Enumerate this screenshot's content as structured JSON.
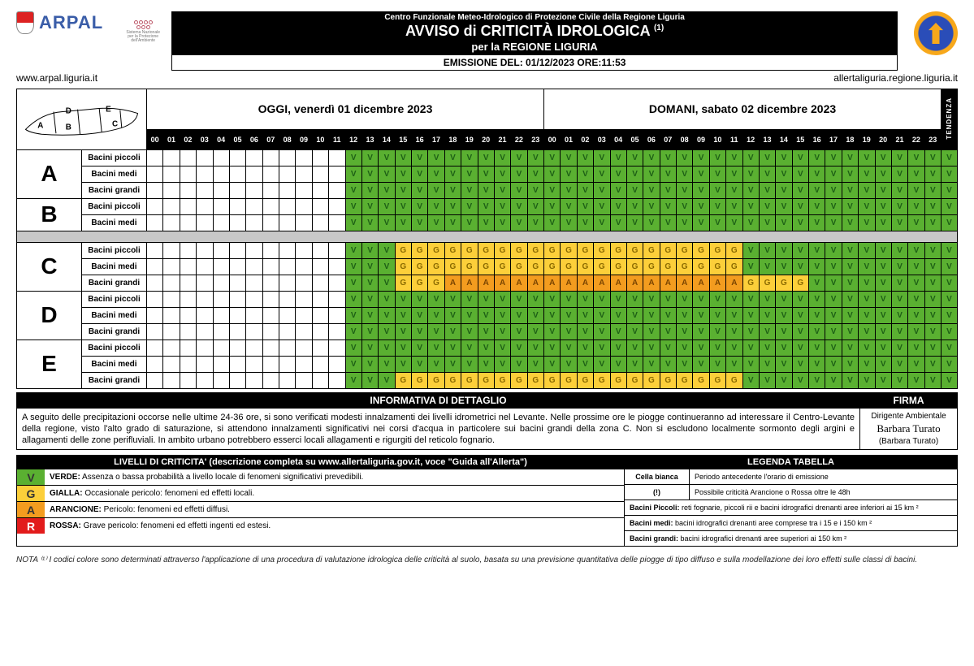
{
  "header": {
    "org": "ARPAL",
    "url_left": "www.arpal.liguria.it",
    "url_right": "allertaliguria.regione.liguria.it",
    "centro": "Centro Funzionale Meteo-Idrologico di Protezione Civile della Regione Liguria",
    "title": "AVVISO di CRITICITÀ IDROLOGICA ",
    "title_sup": "(1)",
    "subtitle": "per la REGIONE LIGURIA",
    "emission": "EMISSIONE DEL: 01/12/2023 ORE:11:53",
    "logo2_text": "Sistema Nazionale per la Protezione dell'Ambiente"
  },
  "days": {
    "today": "OGGI, venerdì 01 dicembre 2023",
    "tomorrow": "DOMANI, sabato 02 dicembre 2023",
    "tendenza": "TENDENZA"
  },
  "hours": [
    "00",
    "01",
    "02",
    "03",
    "04",
    "05",
    "06",
    "07",
    "08",
    "09",
    "10",
    "11",
    "12",
    "13",
    "14",
    "15",
    "16",
    "17",
    "18",
    "19",
    "20",
    "21",
    "22",
    "23",
    "00",
    "01",
    "02",
    "03",
    "04",
    "05",
    "06",
    "07",
    "08",
    "09",
    "10",
    "11",
    "12",
    "13",
    "14",
    "15",
    "16",
    "17",
    "18",
    "19",
    "20",
    "21",
    "22",
    "23"
  ],
  "zones": [
    {
      "letter": "A",
      "basins": [
        {
          "label": "Bacini piccoli",
          "cells": [
            "",
            "",
            "",
            "",
            "",
            "",
            "",
            "",
            "",
            "",
            "",
            "",
            "V",
            "V",
            "V",
            "V",
            "V",
            "V",
            "V",
            "V",
            "V",
            "V",
            "V",
            "V",
            "V",
            "V",
            "V",
            "V",
            "V",
            "V",
            "V",
            "V",
            "V",
            "V",
            "V",
            "V",
            "V",
            "V",
            "V",
            "V",
            "V",
            "V",
            "V",
            "V",
            "V",
            "V",
            "V",
            "V"
          ],
          "tend": "V"
        },
        {
          "label": "Bacini medi",
          "cells": [
            "",
            "",
            "",
            "",
            "",
            "",
            "",
            "",
            "",
            "",
            "",
            "",
            "V",
            "V",
            "V",
            "V",
            "V",
            "V",
            "V",
            "V",
            "V",
            "V",
            "V",
            "V",
            "V",
            "V",
            "V",
            "V",
            "V",
            "V",
            "V",
            "V",
            "V",
            "V",
            "V",
            "V",
            "V",
            "V",
            "V",
            "V",
            "V",
            "V",
            "V",
            "V",
            "V",
            "V",
            "V",
            "V"
          ],
          "tend": "V"
        },
        {
          "label": "Bacini grandi",
          "cells": [
            "",
            "",
            "",
            "",
            "",
            "",
            "",
            "",
            "",
            "",
            "",
            "",
            "V",
            "V",
            "V",
            "V",
            "V",
            "V",
            "V",
            "V",
            "V",
            "V",
            "V",
            "V",
            "V",
            "V",
            "V",
            "V",
            "V",
            "V",
            "V",
            "V",
            "V",
            "V",
            "V",
            "V",
            "V",
            "V",
            "V",
            "V",
            "V",
            "V",
            "V",
            "V",
            "V",
            "V",
            "V",
            "V"
          ],
          "tend": "V"
        }
      ]
    },
    {
      "letter": "B",
      "basins": [
        {
          "label": "Bacini piccoli",
          "cells": [
            "",
            "",
            "",
            "",
            "",
            "",
            "",
            "",
            "",
            "",
            "",
            "",
            "V",
            "V",
            "V",
            "V",
            "V",
            "V",
            "V",
            "V",
            "V",
            "V",
            "V",
            "V",
            "V",
            "V",
            "V",
            "V",
            "V",
            "V",
            "V",
            "V",
            "V",
            "V",
            "V",
            "V",
            "V",
            "V",
            "V",
            "V",
            "V",
            "V",
            "V",
            "V",
            "V",
            "V",
            "V",
            "V"
          ],
          "tend": "V"
        },
        {
          "label": "Bacini medi",
          "cells": [
            "",
            "",
            "",
            "",
            "",
            "",
            "",
            "",
            "",
            "",
            "",
            "",
            "V",
            "V",
            "V",
            "V",
            "V",
            "V",
            "V",
            "V",
            "V",
            "V",
            "V",
            "V",
            "V",
            "V",
            "V",
            "V",
            "V",
            "V",
            "V",
            "V",
            "V",
            "V",
            "V",
            "V",
            "V",
            "V",
            "V",
            "V",
            "V",
            "V",
            "V",
            "V",
            "V",
            "V",
            "V",
            "V"
          ],
          "tend": "V"
        }
      ],
      "grayAfter": true
    },
    {
      "letter": "C",
      "basins": [
        {
          "label": "Bacini piccoli",
          "cells": [
            "",
            "",
            "",
            "",
            "",
            "",
            "",
            "",
            "",
            "",
            "",
            "",
            "V",
            "V",
            "V",
            "G",
            "G",
            "G",
            "G",
            "G",
            "G",
            "G",
            "G",
            "G",
            "G",
            "G",
            "G",
            "G",
            "G",
            "G",
            "G",
            "G",
            "G",
            "G",
            "G",
            "G",
            "V",
            "V",
            "V",
            "V",
            "V",
            "V",
            "V",
            "V",
            "V",
            "V",
            "V",
            "V"
          ],
          "tend": "V"
        },
        {
          "label": "Bacini medi",
          "cells": [
            "",
            "",
            "",
            "",
            "",
            "",
            "",
            "",
            "",
            "",
            "",
            "",
            "V",
            "V",
            "V",
            "G",
            "G",
            "G",
            "G",
            "G",
            "G",
            "G",
            "G",
            "G",
            "G",
            "G",
            "G",
            "G",
            "G",
            "G",
            "G",
            "G",
            "G",
            "G",
            "G",
            "G",
            "V",
            "V",
            "V",
            "V",
            "V",
            "V",
            "V",
            "V",
            "V",
            "V",
            "V",
            "V"
          ],
          "tend": "V"
        },
        {
          "label": "Bacini grandi",
          "cells": [
            "",
            "",
            "",
            "",
            "",
            "",
            "",
            "",
            "",
            "",
            "",
            "",
            "V",
            "V",
            "V",
            "G",
            "G",
            "G",
            "A",
            "A",
            "A",
            "A",
            "A",
            "A",
            "A",
            "A",
            "A",
            "A",
            "A",
            "A",
            "A",
            "A",
            "A",
            "A",
            "A",
            "A",
            "G",
            "G",
            "G",
            "G",
            "V",
            "V",
            "V",
            "V",
            "V",
            "V",
            "V",
            "V"
          ],
          "tend": "V"
        }
      ]
    },
    {
      "letter": "D",
      "basins": [
        {
          "label": "Bacini piccoli",
          "cells": [
            "",
            "",
            "",
            "",
            "",
            "",
            "",
            "",
            "",
            "",
            "",
            "",
            "V",
            "V",
            "V",
            "V",
            "V",
            "V",
            "V",
            "V",
            "V",
            "V",
            "V",
            "V",
            "V",
            "V",
            "V",
            "V",
            "V",
            "V",
            "V",
            "V",
            "V",
            "V",
            "V",
            "V",
            "V",
            "V",
            "V",
            "V",
            "V",
            "V",
            "V",
            "V",
            "V",
            "V",
            "V",
            "V"
          ],
          "tend": "V"
        },
        {
          "label": "Bacini medi",
          "cells": [
            "",
            "",
            "",
            "",
            "",
            "",
            "",
            "",
            "",
            "",
            "",
            "",
            "V",
            "V",
            "V",
            "V",
            "V",
            "V",
            "V",
            "V",
            "V",
            "V",
            "V",
            "V",
            "V",
            "V",
            "V",
            "V",
            "V",
            "V",
            "V",
            "V",
            "V",
            "V",
            "V",
            "V",
            "V",
            "V",
            "V",
            "V",
            "V",
            "V",
            "V",
            "V",
            "V",
            "V",
            "V",
            "V"
          ],
          "tend": "V"
        },
        {
          "label": "Bacini grandi",
          "cells": [
            "",
            "",
            "",
            "",
            "",
            "",
            "",
            "",
            "",
            "",
            "",
            "",
            "V",
            "V",
            "V",
            "V",
            "V",
            "V",
            "V",
            "V",
            "V",
            "V",
            "V",
            "V",
            "V",
            "V",
            "V",
            "V",
            "V",
            "V",
            "V",
            "V",
            "V",
            "V",
            "V",
            "V",
            "V",
            "V",
            "V",
            "V",
            "V",
            "V",
            "V",
            "V",
            "V",
            "V",
            "V",
            "V"
          ],
          "tend": "V"
        }
      ]
    },
    {
      "letter": "E",
      "basins": [
        {
          "label": "Bacini piccoli",
          "cells": [
            "",
            "",
            "",
            "",
            "",
            "",
            "",
            "",
            "",
            "",
            "",
            "",
            "V",
            "V",
            "V",
            "V",
            "V",
            "V",
            "V",
            "V",
            "V",
            "V",
            "V",
            "V",
            "V",
            "V",
            "V",
            "V",
            "V",
            "V",
            "V",
            "V",
            "V",
            "V",
            "V",
            "V",
            "V",
            "V",
            "V",
            "V",
            "V",
            "V",
            "V",
            "V",
            "V",
            "V",
            "V",
            "V"
          ],
          "tend": "V"
        },
        {
          "label": "Bacini medi",
          "cells": [
            "",
            "",
            "",
            "",
            "",
            "",
            "",
            "",
            "",
            "",
            "",
            "",
            "V",
            "V",
            "V",
            "V",
            "V",
            "V",
            "V",
            "V",
            "V",
            "V",
            "V",
            "V",
            "V",
            "V",
            "V",
            "V",
            "V",
            "V",
            "V",
            "V",
            "V",
            "V",
            "V",
            "V",
            "V",
            "V",
            "V",
            "V",
            "V",
            "V",
            "V",
            "V",
            "V",
            "V",
            "V",
            "V"
          ],
          "tend": "V"
        },
        {
          "label": "Bacini grandi",
          "cells": [
            "",
            "",
            "",
            "",
            "",
            "",
            "",
            "",
            "",
            "",
            "",
            "",
            "V",
            "V",
            "V",
            "G",
            "G",
            "G",
            "G",
            "G",
            "G",
            "G",
            "G",
            "G",
            "G",
            "G",
            "G",
            "G",
            "G",
            "G",
            "G",
            "G",
            "G",
            "G",
            "G",
            "G",
            "V",
            "V",
            "V",
            "V",
            "V",
            "V",
            "V",
            "V",
            "V",
            "V",
            "V",
            "V"
          ],
          "tend": "V"
        }
      ]
    }
  ],
  "info": {
    "header_left": "INFORMATIVA DI DETTAGLIO",
    "header_right": "FIRMA",
    "text": "A seguito delle precipitazioni occorse nelle ultime 24-36 ore, si sono verificati modesti innalzamenti dei livelli idrometrici nel Levante. Nelle prossime ore le piogge continueranno ad interessare il Centro-Levante della regione, visto l'alto grado di saturazione, si attendono innalzamenti significativi nei corsi d'acqua in particolere sui bacini grandi della zona C. Non si escludono localmente sormonto degli argini e allagamenti delle zone perifluviali. In ambito urbano potrebbero esserci locali allagamenti e rigurgiti del reticolo fognario.",
    "sign_role": "Dirigente Ambientale",
    "sign_name": "(Barbara Turato)"
  },
  "legend": {
    "header_left": "LIVELLI DI CRITICITA' (descrizione completa su www.allertaliguria.gov.it, voce \"Guida all'Allerta\")",
    "header_right": "LEGENDA TABELLA",
    "levels": [
      {
        "code": "V",
        "color": "#5ab031",
        "bold": "VERDE:",
        "text": " Assenza o bassa probabilità a livello locale di fenomeni significativi prevedibili."
      },
      {
        "code": "G",
        "color": "#fccf3a",
        "bold": "GIALLA:",
        "text": " Occasionale pericolo: fenomeni ed effetti locali."
      },
      {
        "code": "A",
        "color": "#f39c1f",
        "bold": "ARANCIONE:",
        "text": " Pericolo: fenomeni ed effetti diffusi."
      },
      {
        "code": "R",
        "color": "#e21b1b",
        "bold": "ROSSA:",
        "text": " Grave pericolo: fenomeni ed effetti ingenti ed estesi."
      }
    ],
    "tab": [
      {
        "c1": "Cella bianca",
        "c2": "Periodo antecedente l'orario di emissione"
      },
      {
        "c1": "(!)",
        "c2": "Possibile criticità Arancione o Rossa oltre le 48h"
      }
    ],
    "tab_full": [
      {
        "bold": "Bacini Piccoli:",
        "text": " reti fognarie, piccoli rii e bacini idrografici drenanti aree inferiori ai 15 km ²"
      },
      {
        "bold": "Bacini medi:",
        "text": " bacini idrografici drenanti aree comprese tra i 15 e i 150 km ²"
      },
      {
        "bold": "Bacini grandi:",
        "text": " bacini idrografici drenanti aree superiori ai 150 km ²"
      }
    ]
  },
  "nota": "NOTA ⁽¹⁾ I codici colore sono determinati attraverso l'applicazione di una procedura di valutazione idrologica delle criticità al suolo, basata su una previsione quantitativa delle piogge di tipo diffuso e sulla modellazione dei loro effetti sulle classi di bacini.",
  "colors": {
    "V": "#5ab031",
    "G": "#fccf3a",
    "A": "#f39c1f",
    "R": "#e21b1b"
  }
}
